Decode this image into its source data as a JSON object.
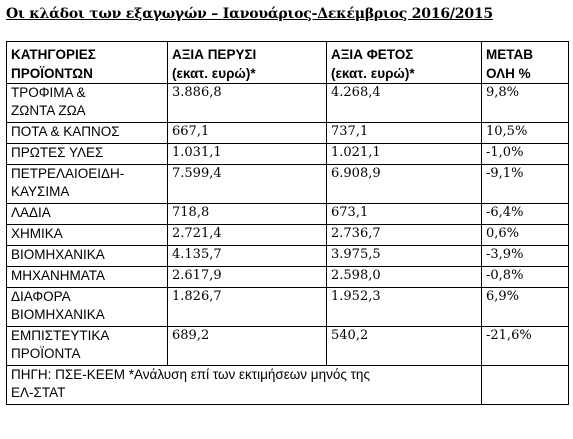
{
  "title": "Οι κλάδοι των εξαγωγών – Ιανουάριος-Δεκέμβριος 2016/2015",
  "headers": {
    "category": [
      "ΚΑΤΗΓΟΡΙΕΣ",
      "ΠΡΟΪΟΝΤΩΝ"
    ],
    "prev_value": [
      "ΑΞΙΑ ΠΕΡΥΣΙ",
      "(εκατ. ευρώ)*"
    ],
    "curr_value": [
      "ΑΞΙΑ ΦΕΤΟΣ",
      "(εκατ. ευρώ)*"
    ],
    "change": [
      "ΜΕΤΑΒ",
      "ΟΛΗ %"
    ]
  },
  "rows": [
    {
      "category": [
        "ΤΡΟΦΙΜΑ &",
        "ΖΩΝΤΑ ΖΩΑ"
      ],
      "prev": "3.886,8",
      "curr": "4.268,4",
      "change": "9,8%"
    },
    {
      "category": [
        "ΠΟΤΑ & ΚΑΠΝΟΣ"
      ],
      "prev": "667,1",
      "curr": "737,1",
      "change": "10,5%"
    },
    {
      "category": [
        "ΠΡΩΤΕΣ ΥΛΕΣ"
      ],
      "prev": "1.031,1",
      "curr": "1.021,1",
      "change": "-1,0%"
    },
    {
      "category": [
        "ΠΕΤΡΕΛΑΙΟΕΙΔΗ-",
        "ΚΑΥΣΙΜΑ"
      ],
      "prev": "7.599,4",
      "curr": "6.908,9",
      "change": "-9,1%"
    },
    {
      "category": [
        "ΛΑΔΙΑ"
      ],
      "prev": "718,8",
      "curr": "673,1",
      "change": "-6,4%"
    },
    {
      "category": [
        "ΧΗΜΙΚΑ"
      ],
      "prev": "2.721,4",
      "curr": "2.736,7",
      "change": "0,6%"
    },
    {
      "category": [
        "ΒΙΟΜΗΧΑΝΙΚΑ"
      ],
      "prev": "4.135,7",
      "curr": "3.975,5",
      "change": "-3,9%"
    },
    {
      "category": [
        "ΜΗΧΑΝΗΜΑΤΑ"
      ],
      "prev": "2.617,9",
      "curr": "2.598,0",
      "change": "-0,8%"
    },
    {
      "category": [
        "ΔΙΑΦΟΡΑ",
        "ΒΙΟΜΗΧΑΝΙΚΑ"
      ],
      "prev": "1.826,7",
      "curr": "1.952,3",
      "change": "6,9%"
    },
    {
      "category": [
        "ΕΜΠΙΣΤΕΥΤΙΚΑ",
        "ΠΡΟΪΟΝΤΑ"
      ],
      "prev": "689,2",
      "curr": "540,2",
      "change": "-21,6%"
    }
  ],
  "source": [
    "ΠΗΓΗ: ΠΣΕ-ΚΕΕΜ  *Ανάλυση επί των εκτιμήσεων μηνός της",
    "ΕΛ-ΣΤΑΤ"
  ]
}
